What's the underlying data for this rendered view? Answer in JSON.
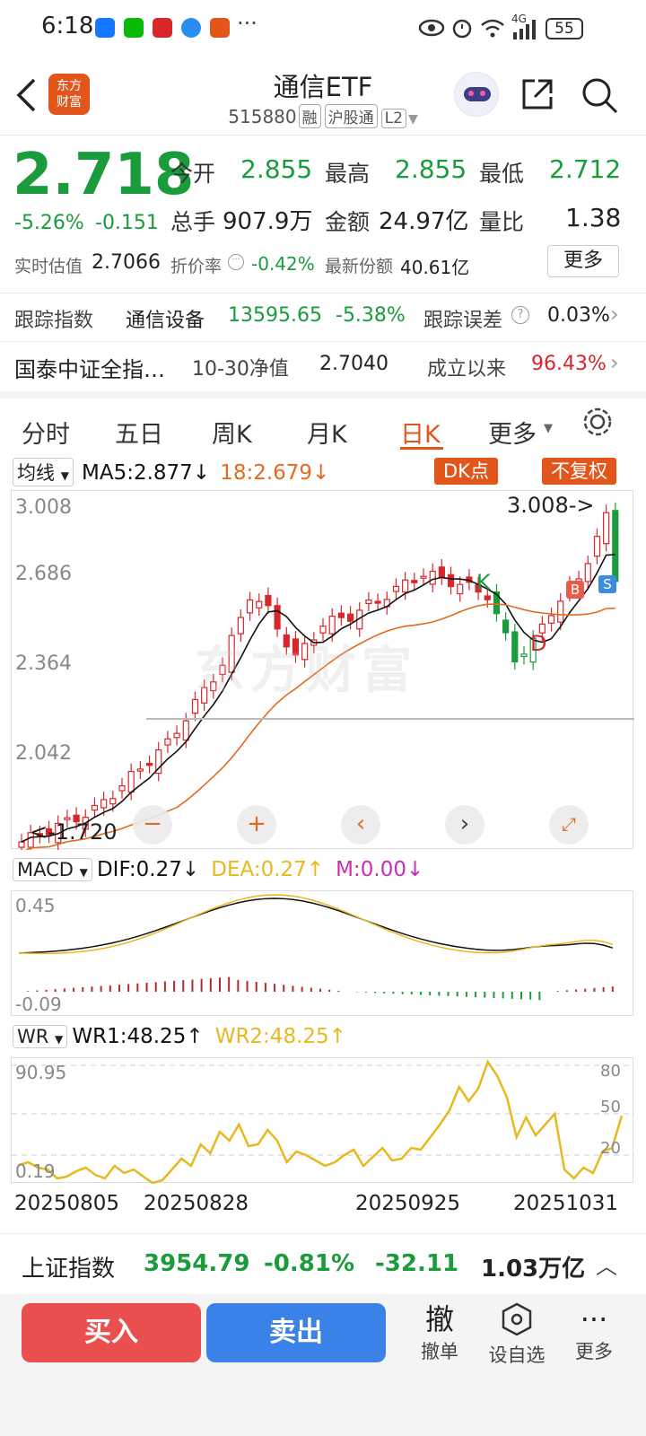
{
  "status_bar": {
    "time": "6:18",
    "battery": "55",
    "network": "4G"
  },
  "header": {
    "title": "通信ETF",
    "code": "515880",
    "tags": [
      "融",
      "沪股通",
      "L2"
    ],
    "logo_text": [
      "东方",
      "财富"
    ]
  },
  "quote": {
    "price": "2.718",
    "change_pct": "-5.26%",
    "change": "-0.151",
    "open_label": "今开",
    "open": "2.855",
    "high_label": "最高",
    "high": "2.855",
    "low_label": "最低",
    "low": "2.712",
    "volume_label": "总手",
    "volume": "907.9万",
    "amount_label": "金额",
    "amount": "24.97亿",
    "ratio_label": "量比",
    "ratio": "1.38",
    "iopv_label": "实时估值",
    "iopv": "2.7066",
    "premium_label": "折价率",
    "premium": "-0.42%",
    "shares_label": "最新份额",
    "shares": "40.61亿",
    "more_label": "更多"
  },
  "tracking": {
    "label": "跟踪指数",
    "index_name": "通信设备",
    "index_value": "13595.65",
    "index_change": "-5.38%",
    "error_label": "跟踪误差",
    "error": "0.03%"
  },
  "fund": {
    "name": "国泰中证全指…",
    "nav_label": "10-30净值",
    "nav": "2.7040",
    "since_label": "成立以来",
    "since": "96.43%"
  },
  "tabs": [
    "分时",
    "五日",
    "周K",
    "月K",
    "日K",
    "更多"
  ],
  "active_tab": "日K",
  "kline": {
    "indicator": "均线",
    "ma5_text": "MA5:2.877",
    "ma18_text": "18:2.679",
    "dk_label": "DK点",
    "adjust_label": "不复权",
    "y_labels": [
      "3.008",
      "2.686",
      "2.364",
      "2.042"
    ],
    "max_label": "3.008->",
    "min_label": "<-1.720",
    "k_mark": "K",
    "d_mark": "D",
    "b_mark": "B",
    "s_mark": "S",
    "watermark": "东方财富"
  },
  "macd": {
    "label": "MACD",
    "dif": "DIF:0.27",
    "dea": "DEA:0.27",
    "m": "M:0.00",
    "y_top": "0.45",
    "y_bottom": "-0.09"
  },
  "wr": {
    "label": "WR",
    "wr1": "WR1:48.25",
    "wr2": "WR2:48.25",
    "y_top": "90.95",
    "y_bottom": "0.19",
    "r_labels": [
      "80",
      "50",
      "20"
    ]
  },
  "dates": [
    "20250805",
    "20250828",
    "20250925",
    "20251031"
  ],
  "index_bar": {
    "name": "上证指数",
    "value": "3954.79",
    "pct": "-0.81%",
    "change": "-32.11",
    "amount": "1.03万亿"
  },
  "actions": {
    "buy": "买入",
    "sell": "卖出",
    "cancel_icon": "撤",
    "cancel": "撤单",
    "watch": "设自选",
    "more": "更多"
  },
  "colors": {
    "up": "#d8262b",
    "down": "#1a9c3c",
    "accent": "#e2561c",
    "ma5": "#111111",
    "ma18": "#e36a1e",
    "dea": "#e8b820",
    "m": "#c72fb4"
  }
}
